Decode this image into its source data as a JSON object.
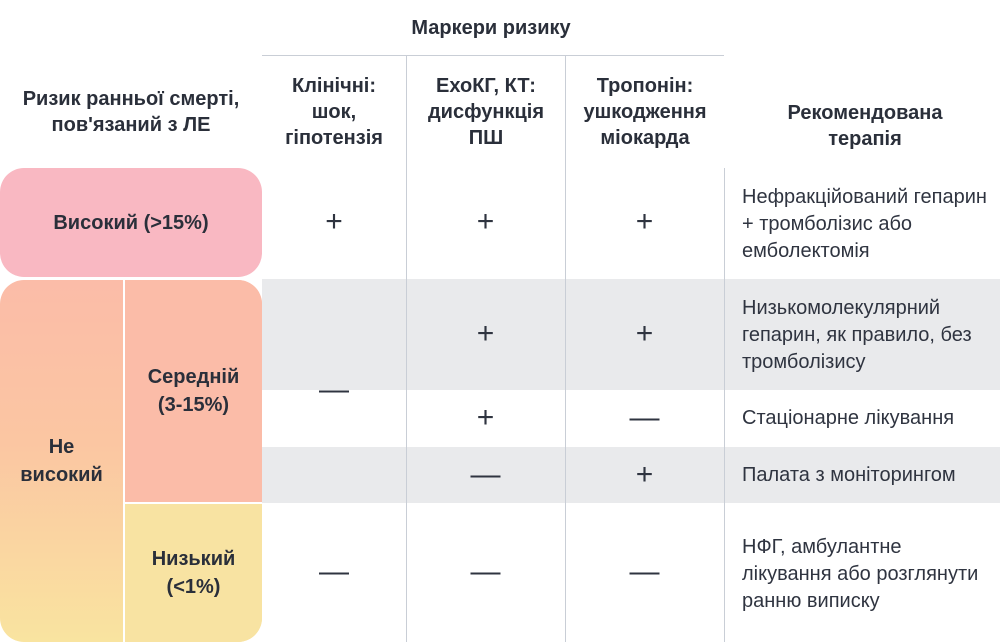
{
  "header": {
    "risk_markers": "Маркери ризику",
    "early_death_risk": "Ризик ранньої смерті, пов'язаний з ЛЕ",
    "clinical": "Клінічні: шок, гіпотензія",
    "echo_ct": "ЕхоКГ, КТ: дисфункція ПШ",
    "troponin": "Тропонін: ушкодження міокарда",
    "therapy": "Рекомендована терапія"
  },
  "risk": {
    "high": "Високий (>15%)",
    "not_high": "Не високий",
    "intermediate": "Середній (3-15%)",
    "low": "Низький (<1%)"
  },
  "rows": {
    "high": {
      "clinical": "+",
      "echo": "+",
      "troponin": "+",
      "therapy": "Нефракційований гепарин + тромболізис або емболектомія"
    },
    "intermediate_clinical": "—",
    "intermediate_1": {
      "echo": "+",
      "troponin": "+",
      "therapy": "Низькомолекулярний гепарин, як правило, без тромболізису"
    },
    "intermediate_2": {
      "echo": "+",
      "troponin": "—",
      "therapy": "Стаціонарне лікування"
    },
    "intermediate_3": {
      "echo": "—",
      "troponin": "+",
      "therapy": "Палата з моніторингом"
    },
    "low": {
      "clinical": "—",
      "echo": "—",
      "troponin": "—",
      "therapy": "НФГ, амбулантне лікування або розглянути ранню виписку"
    }
  },
  "colors": {
    "high_fill": "#f9b8c2",
    "not_high_gradient_top": "#fbbca8",
    "not_high_gradient_bottom": "#f9e4a0",
    "intermediate_fill": "#fbbca8",
    "low_fill": "#f8e3a2",
    "gray_band": "#e9eaec",
    "line": "#c9ced6"
  }
}
